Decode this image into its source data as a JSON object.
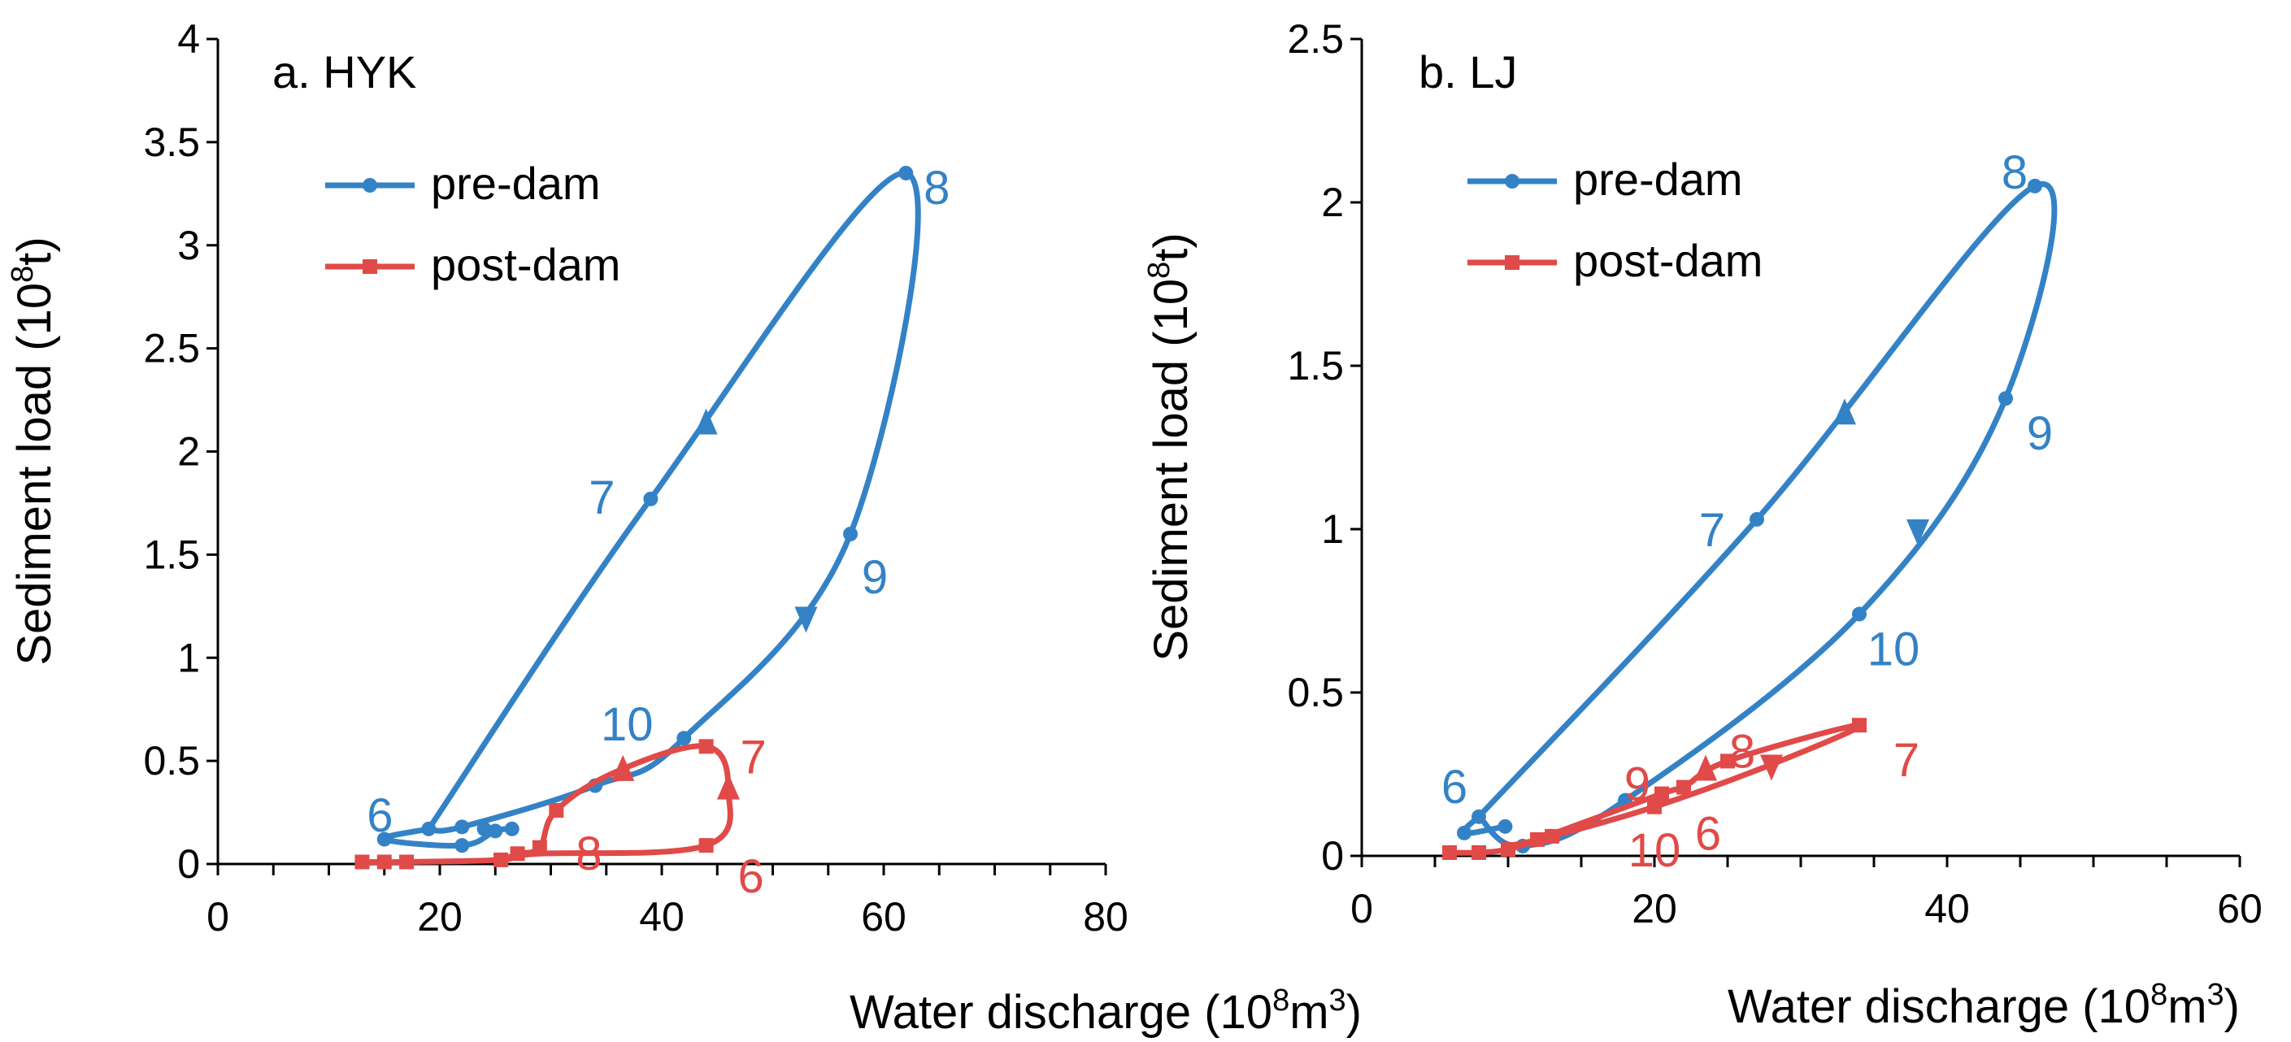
{
  "colors": {
    "pre": "#3482C6",
    "post": "#E04A48",
    "axis": "#000000"
  },
  "chart_data": [
    {
      "type": "line",
      "title": "a. HYK",
      "xlabel": "Water discharge (10",
      "xlabel_sup": "8",
      "xlabel_unit": "m",
      "xlabel_sup2": "3",
      "xlabel_end": ")",
      "ylabel": "Sediment load (10",
      "ylabel_sup": "8",
      "ylabel_end": "t)",
      "xlim": [
        0,
        80
      ],
      "ylim": [
        0,
        4
      ],
      "xticks": [
        0,
        20,
        40,
        60,
        80
      ],
      "xtick_labels": [
        "0",
        "20",
        "40",
        "60",
        "80"
      ],
      "yticks": [
        0,
        0.5,
        1,
        1.5,
        2,
        2.5,
        3,
        3.5,
        4
      ],
      "ytick_labels": [
        "0",
        "0.5",
        "1",
        "1.5",
        "2",
        "2.5",
        "3",
        "3.5",
        "4"
      ],
      "legend": {
        "position": "top-left",
        "entries": [
          "pre-dam",
          "post-dam"
        ]
      },
      "series": [
        {
          "name": "pre-dam",
          "marker": "circle",
          "points": [
            [
              26.5,
              0.17
            ],
            [
              25,
              0.16
            ],
            [
              22,
              0.09
            ],
            [
              15,
              0.12
            ],
            [
              19,
              0.17
            ],
            [
              39,
              1.77
            ],
            [
              62,
              3.35
            ],
            [
              57,
              1.6
            ],
            [
              42,
              0.61
            ],
            [
              34,
              0.38
            ],
            [
              22,
              0.18
            ],
            [
              24,
              0.17
            ]
          ],
          "loop": [
            [
              19,
              0.17
            ],
            [
              39,
              1.77
            ],
            [
              62,
              3.35
            ],
            [
              57,
              1.6
            ],
            [
              42,
              0.61
            ],
            [
              34,
              0.38
            ],
            [
              22,
              0.18
            ],
            [
              19,
              0.17
            ]
          ],
          "tail": [
            [
              19,
              0.17
            ],
            [
              15,
              0.12
            ],
            [
              22,
              0.09
            ],
            [
              25,
              0.16
            ],
            [
              26.5,
              0.17
            ]
          ],
          "arrows": [
            {
              "x": 44,
              "y": 2.13,
              "dir": "up"
            },
            {
              "x": 53,
              "y": 1.2,
              "dir": "down"
            }
          ],
          "month_labels": [
            {
              "text": "6",
              "x": 19,
              "y": 0.17
            },
            {
              "text": "7",
              "x": 39,
              "y": 1.77
            },
            {
              "text": "8",
              "x": 62,
              "y": 3.35
            },
            {
              "text": "9",
              "x": 57,
              "y": 1.6
            },
            {
              "text": "10",
              "x": 42,
              "y": 0.61
            }
          ]
        },
        {
          "name": "post-dam",
          "marker": "square",
          "points": [
            [
              13,
              0.01
            ],
            [
              15,
              0.01
            ],
            [
              17,
              0.01
            ],
            [
              25.5,
              0.02
            ],
            [
              27,
              0.05
            ],
            [
              29,
              0.08
            ],
            [
              30.5,
              0.26
            ],
            [
              44,
              0.57
            ],
            [
              44,
              0.09
            ]
          ],
          "line": [
            [
              13,
              0.01
            ],
            [
              17,
              0.01
            ],
            [
              25.5,
              0.02
            ],
            [
              27,
              0.05
            ],
            [
              29,
              0.08
            ],
            [
              30.5,
              0.26
            ],
            [
              36,
              0.45
            ],
            [
              44,
              0.57
            ],
            [
              46,
              0.36
            ],
            [
              44,
              0.09
            ],
            [
              29,
              0.05
            ],
            [
              26,
              0.03
            ]
          ],
          "arrows": [
            {
              "x": 36.5,
              "y": 0.45,
              "dir": "up"
            },
            {
              "x": 46,
              "y": 0.36,
              "dir": "up"
            }
          ],
          "month_labels": [
            {
              "text": "7",
              "x": 44,
              "y": 0.57
            },
            {
              "text": "8",
              "x": 30.5,
              "y": 0.26
            },
            {
              "text": "6",
              "x": 44,
              "y": 0.09
            }
          ]
        }
      ]
    },
    {
      "type": "line",
      "title": "b. LJ",
      "xlabel": "Water discharge (10",
      "xlabel_sup": "8",
      "xlabel_unit": "m",
      "xlabel_sup2": "3",
      "xlabel_end": ")",
      "ylabel": "Sediment load (10",
      "ylabel_sup": "8",
      "ylabel_end": "t)",
      "xlim": [
        0,
        60
      ],
      "ylim": [
        0,
        2.5
      ],
      "xticks": [
        0,
        20,
        40,
        60
      ],
      "xtick_labels": [
        "0",
        "20",
        "40",
        "60"
      ],
      "yticks": [
        0,
        0.5,
        1,
        1.5,
        2,
        2.5
      ],
      "ytick_labels": [
        "0",
        "0.5",
        "1",
        "1.5",
        "2",
        "2.5"
      ],
      "legend": {
        "position": "top-left",
        "entries": [
          "pre-dam",
          "post-dam"
        ]
      },
      "series": [
        {
          "name": "pre-dam",
          "marker": "circle",
          "points": [
            [
              9.8,
              0.09
            ],
            [
              7,
              0.07
            ],
            [
              8,
              0.12
            ],
            [
              27,
              1.03
            ],
            [
              46,
              2.05
            ],
            [
              44,
              1.4
            ],
            [
              34,
              0.74
            ],
            [
              18,
              0.17
            ],
            [
              11,
              0.03
            ]
          ],
          "loop": [
            [
              8,
              0.12
            ],
            [
              27,
              1.03
            ],
            [
              46,
              2.05
            ],
            [
              44,
              1.4
            ],
            [
              34,
              0.74
            ],
            [
              18,
              0.17
            ],
            [
              11,
              0.03
            ],
            [
              8,
              0.12
            ]
          ],
          "tail": [
            [
              8,
              0.12
            ],
            [
              7,
              0.07
            ],
            [
              9.8,
              0.09
            ]
          ],
          "arrows": [
            {
              "x": 33,
              "y": 1.35,
              "dir": "up"
            },
            {
              "x": 38,
              "y": 1.0,
              "dir": "down"
            }
          ],
          "month_labels": [
            {
              "text": "6",
              "x": 8,
              "y": 0.12
            },
            {
              "text": "7",
              "x": 27,
              "y": 1.03
            },
            {
              "text": "8",
              "x": 46,
              "y": 2.05
            },
            {
              "text": "9",
              "x": 44,
              "y": 1.4
            },
            {
              "text": "10",
              "x": 34,
              "y": 0.74
            }
          ]
        },
        {
          "name": "post-dam",
          "marker": "square",
          "points": [
            [
              6,
              0.01
            ],
            [
              8,
              0.01
            ],
            [
              10,
              0.02
            ],
            [
              12,
              0.05
            ],
            [
              20.5,
              0.19
            ],
            [
              22,
              0.21
            ],
            [
              25,
              0.29
            ],
            [
              34,
              0.4
            ],
            [
              20,
              0.15
            ],
            [
              13,
              0.06
            ]
          ],
          "line": [
            [
              6,
              0.01
            ],
            [
              8,
              0.01
            ],
            [
              10,
              0.02
            ],
            [
              12,
              0.05
            ],
            [
              20.5,
              0.19
            ],
            [
              22,
              0.21
            ],
            [
              25,
              0.29
            ],
            [
              34,
              0.4
            ],
            [
              28,
              0.28
            ],
            [
              20,
              0.15
            ],
            [
              13,
              0.06
            ],
            [
              10,
              0.03
            ]
          ],
          "arrows": [
            {
              "x": 23.5,
              "y": 0.26,
              "dir": "up"
            },
            {
              "x": 28,
              "y": 0.28,
              "dir": "down"
            }
          ],
          "month_labels": [
            {
              "text": "7",
              "x": 34,
              "y": 0.4
            },
            {
              "text": "8",
              "x": 25,
              "y": 0.29
            },
            {
              "text": "9",
              "x": 20.5,
              "y": 0.19
            },
            {
              "text": "6",
              "x": 22,
              "y": 0.15
            },
            {
              "text": "10",
              "x": 20,
              "y": 0.1
            }
          ]
        }
      ]
    }
  ]
}
